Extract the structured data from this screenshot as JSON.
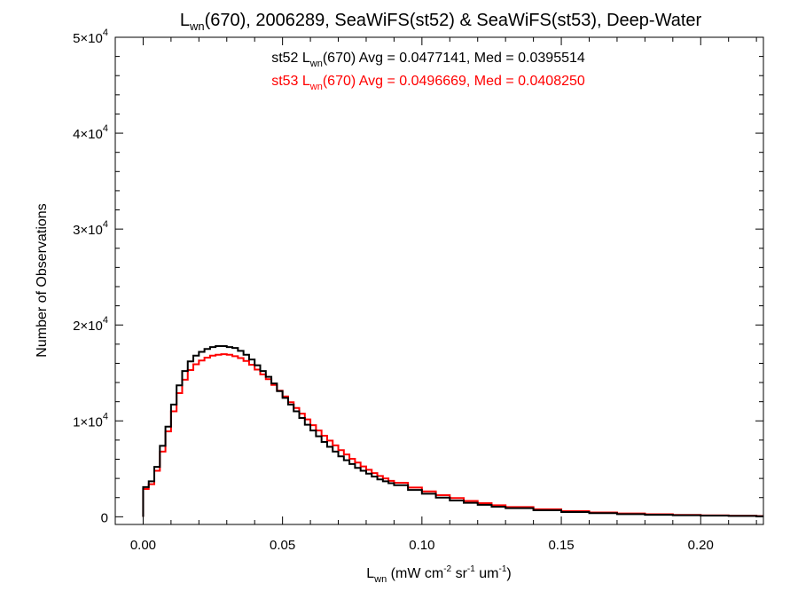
{
  "chart_data": {
    "type": "line",
    "step": true,
    "title": {
      "main": "L",
      "sub": "wn",
      "rest": "(670), 2006289, SeaWiFS(st52) & SeaWiFS(st53), Deep-Water"
    },
    "ylabel": "Number of Observations",
    "xlabel": {
      "main": "L",
      "sub": "wn",
      "parts": [
        {
          "t": " (mW cm",
          "sup": "-2"
        },
        {
          "t": " sr",
          "sup": "-1"
        },
        {
          "t": " um",
          "sup": "-1"
        },
        {
          "t": ")"
        }
      ]
    },
    "xlim": [
      -0.01,
      0.2225
    ],
    "ylim": [
      -800,
      50000
    ],
    "xticks": [
      {
        "v": 0.0,
        "label": "0.00"
      },
      {
        "v": 0.05,
        "label": "0.05"
      },
      {
        "v": 0.1,
        "label": "0.10"
      },
      {
        "v": 0.15,
        "label": "0.15"
      },
      {
        "v": 0.2,
        "label": "0.20"
      }
    ],
    "yticks": [
      {
        "v": 0,
        "mantissa": "0",
        "exp": ""
      },
      {
        "v": 10000,
        "mantissa": "1×10",
        "exp": "4"
      },
      {
        "v": 20000,
        "mantissa": "2×10",
        "exp": "4"
      },
      {
        "v": 30000,
        "mantissa": "3×10",
        "exp": "4"
      },
      {
        "v": 40000,
        "mantissa": "4×10",
        "exp": "4"
      },
      {
        "v": 50000,
        "mantissa": "5×10",
        "exp": "4"
      }
    ],
    "grid": false,
    "legend": "top-center",
    "series": [
      {
        "name": "st52",
        "color": "#000000",
        "stats": {
          "prefix": "st52 L",
          "sub": "wn",
          "suffix": "(670) Avg = 0.0477141, Med = 0.0395514"
        },
        "x": [
          0.0,
          0.002,
          0.004,
          0.006,
          0.008,
          0.01,
          0.012,
          0.014,
          0.016,
          0.018,
          0.02,
          0.022,
          0.024,
          0.026,
          0.028,
          0.03,
          0.032,
          0.034,
          0.036,
          0.038,
          0.04,
          0.042,
          0.044,
          0.046,
          0.048,
          0.05,
          0.052,
          0.054,
          0.056,
          0.058,
          0.06,
          0.062,
          0.064,
          0.066,
          0.068,
          0.07,
          0.072,
          0.074,
          0.076,
          0.078,
          0.08,
          0.082,
          0.084,
          0.086,
          0.088,
          0.09,
          0.095,
          0.1,
          0.105,
          0.11,
          0.115,
          0.12,
          0.125,
          0.13,
          0.14,
          0.15,
          0.16,
          0.17,
          0.18,
          0.19,
          0.2,
          0.21,
          0.22
        ],
        "y": [
          3100,
          3700,
          5200,
          7400,
          9400,
          11700,
          13700,
          15200,
          16200,
          16800,
          17200,
          17500,
          17700,
          17800,
          17800,
          17700,
          17600,
          17300,
          16900,
          16400,
          15800,
          15200,
          14600,
          13900,
          13100,
          12400,
          11700,
          11000,
          10300,
          9600,
          9000,
          8400,
          7800,
          7300,
          6800,
          6300,
          5900,
          5500,
          5100,
          4800,
          4500,
          4200,
          3900,
          3700,
          3500,
          3300,
          2800,
          2400,
          2000,
          1700,
          1450,
          1250,
          1050,
          900,
          680,
          500,
          380,
          280,
          210,
          160,
          120,
          90,
          60
        ]
      },
      {
        "name": "st53",
        "color": "#ff0000",
        "stats": {
          "prefix": "st53 L",
          "sub": "wn",
          "suffix": "(670) Avg = 0.0496669, Med = 0.0408250"
        },
        "x": [
          0.0,
          0.002,
          0.004,
          0.006,
          0.008,
          0.01,
          0.012,
          0.014,
          0.016,
          0.018,
          0.02,
          0.022,
          0.024,
          0.026,
          0.028,
          0.03,
          0.032,
          0.034,
          0.036,
          0.038,
          0.04,
          0.042,
          0.044,
          0.046,
          0.048,
          0.05,
          0.052,
          0.054,
          0.056,
          0.058,
          0.06,
          0.062,
          0.064,
          0.066,
          0.068,
          0.07,
          0.072,
          0.074,
          0.076,
          0.078,
          0.08,
          0.082,
          0.084,
          0.086,
          0.088,
          0.09,
          0.095,
          0.1,
          0.105,
          0.11,
          0.115,
          0.12,
          0.125,
          0.13,
          0.14,
          0.15,
          0.16,
          0.17,
          0.18,
          0.19,
          0.2,
          0.21,
          0.22
        ],
        "y": [
          2900,
          3400,
          4800,
          6800,
          8900,
          11000,
          12900,
          14300,
          15300,
          15900,
          16300,
          16600,
          16800,
          16900,
          16950,
          16900,
          16750,
          16550,
          16250,
          15850,
          15350,
          14850,
          14350,
          13750,
          13150,
          12550,
          11950,
          11350,
          10750,
          10150,
          9550,
          9000,
          8450,
          7950,
          7450,
          6950,
          6500,
          6050,
          5650,
          5250,
          4900,
          4550,
          4250,
          4000,
          3750,
          3550,
          3050,
          2650,
          2250,
          1950,
          1650,
          1420,
          1200,
          1020,
          780,
          590,
          450,
          340,
          260,
          200,
          150,
          110,
          80
        ]
      }
    ]
  }
}
